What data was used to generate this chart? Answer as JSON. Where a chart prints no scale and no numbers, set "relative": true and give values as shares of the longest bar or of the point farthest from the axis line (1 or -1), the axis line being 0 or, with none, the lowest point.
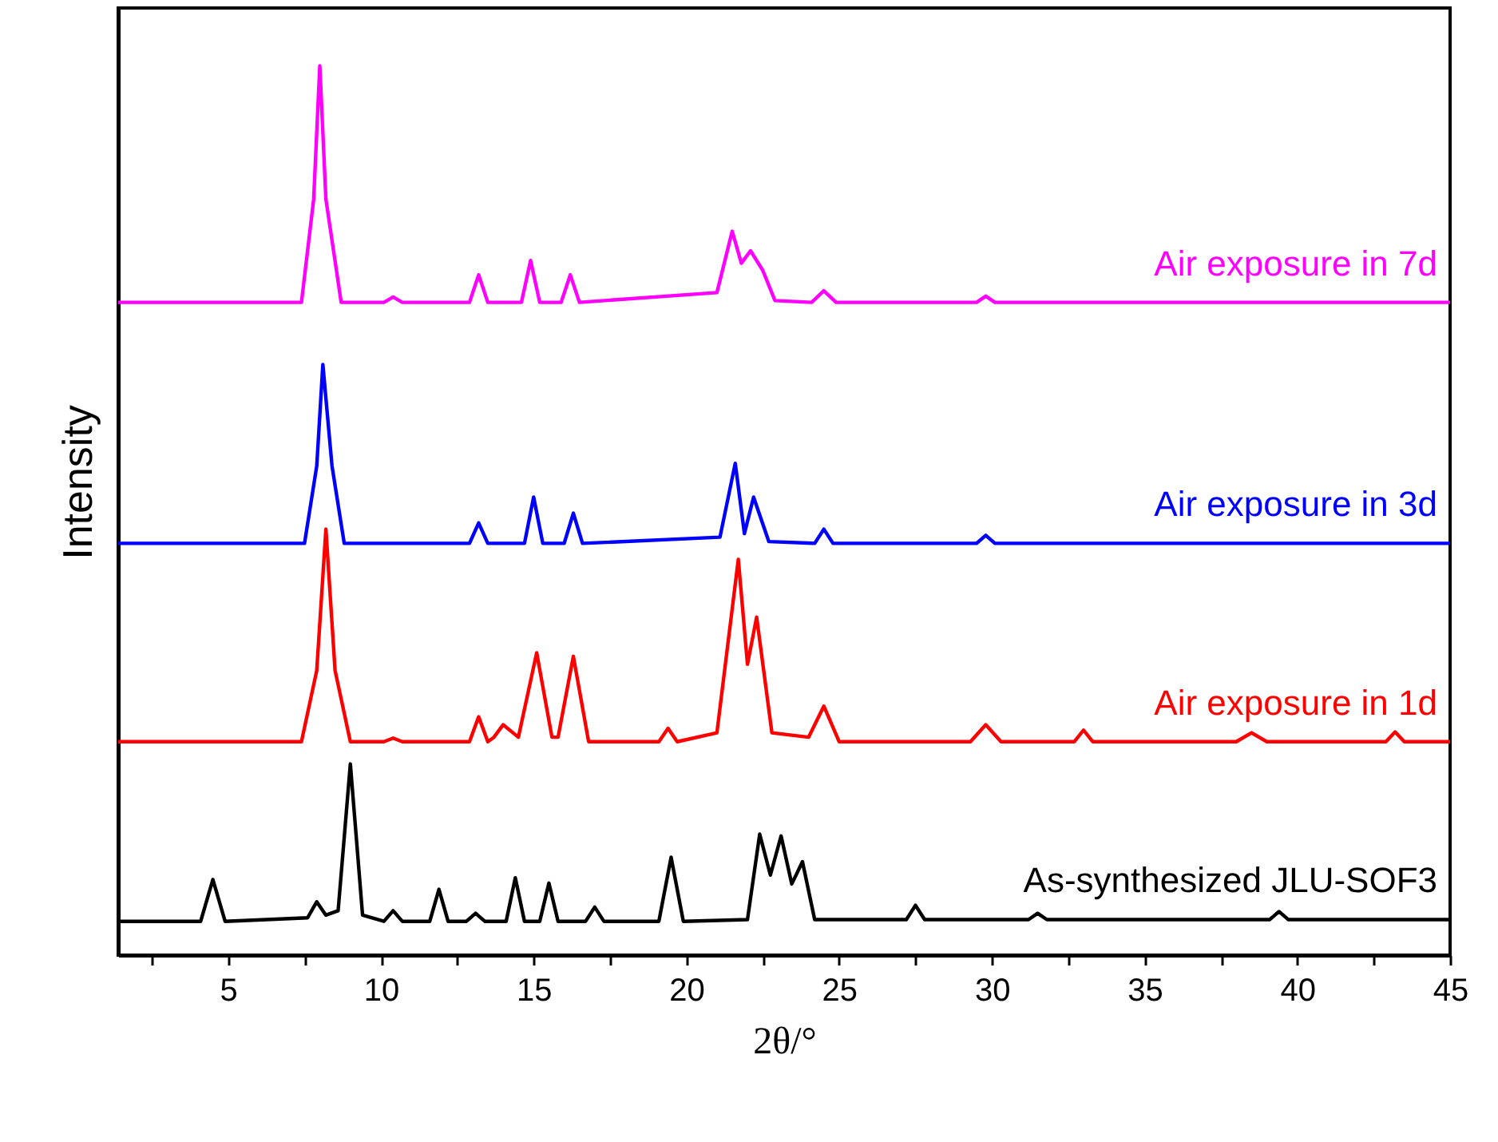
{
  "chart_data": {
    "type": "line",
    "xlabel": "2θ/°",
    "ylabel": "Intensity",
    "relative": true,
    "xlim": [
      1.4,
      45
    ],
    "xticks": [
      {
        "value": 2.5,
        "label": null
      },
      5,
      {
        "value": 7.5,
        "label": null
      },
      10,
      {
        "value": 12.5,
        "label": null
      },
      15,
      {
        "value": 17.5,
        "label": null
      },
      20,
      {
        "value": 22.5,
        "label": null
      },
      25,
      {
        "value": 27.5,
        "label": null
      },
      30,
      {
        "value": 32.5,
        "label": null
      },
      35,
      {
        "value": 37.5,
        "label": null
      },
      40,
      {
        "value": 42.5,
        "label": null
      },
      45
    ],
    "series": [
      {
        "name": "As-synthesized JLU-SOF3",
        "color": "#000000",
        "x": [
          1.4,
          4.1,
          4.5,
          4.9,
          7.6,
          7.9,
          8.2,
          8.6,
          9.0,
          9.4,
          10.1,
          10.4,
          10.7,
          11.6,
          11.9,
          12.2,
          12.8,
          13.1,
          13.4,
          14.1,
          14.4,
          14.7,
          15.2,
          15.5,
          15.8,
          16.7,
          17.0,
          17.3,
          19.1,
          19.5,
          19.9,
          22.0,
          22.4,
          22.75,
          23.1,
          23.45,
          23.8,
          24.2,
          27.2,
          27.5,
          27.8,
          31.2,
          31.5,
          31.8,
          39.1,
          39.4,
          39.7,
          45
        ],
        "values": [
          0.038,
          0.038,
          0.085,
          0.038,
          0.042,
          0.06,
          0.045,
          0.05,
          0.215,
          0.045,
          0.038,
          0.05,
          0.038,
          0.038,
          0.074,
          0.038,
          0.038,
          0.047,
          0.038,
          0.038,
          0.087,
          0.038,
          0.038,
          0.081,
          0.038,
          0.038,
          0.054,
          0.038,
          0.038,
          0.11,
          0.038,
          0.04,
          0.136,
          0.09,
          0.134,
          0.08,
          0.105,
          0.04,
          0.04,
          0.056,
          0.04,
          0.04,
          0.047,
          0.04,
          0.04,
          0.049,
          0.04,
          0.04
        ]
      },
      {
        "name": "Air exposure in 1d",
        "color": "#ff0000",
        "x": [
          1.4,
          7.4,
          7.9,
          8.2,
          8.5,
          9.0,
          10.1,
          10.4,
          10.7,
          12.9,
          13.2,
          13.5,
          13.7,
          14.0,
          14.5,
          15.1,
          15.6,
          15.8,
          16.3,
          16.8,
          19.1,
          19.4,
          19.7,
          21.0,
          21.7,
          22.0,
          22.3,
          22.8,
          24.0,
          24.5,
          25.0,
          29.3,
          29.8,
          30.3,
          32.7,
          33.0,
          33.3,
          38.0,
          38.5,
          39.0,
          42.9,
          43.2,
          43.5,
          45
        ],
        "values": [
          0.24,
          0.24,
          0.32,
          0.479,
          0.32,
          0.24,
          0.24,
          0.244,
          0.24,
          0.24,
          0.268,
          0.24,
          0.245,
          0.259,
          0.245,
          0.34,
          0.245,
          0.245,
          0.336,
          0.24,
          0.24,
          0.255,
          0.24,
          0.25,
          0.445,
          0.327,
          0.38,
          0.25,
          0.245,
          0.28,
          0.24,
          0.24,
          0.259,
          0.24,
          0.24,
          0.253,
          0.24,
          0.24,
          0.25,
          0.24,
          0.24,
          0.251,
          0.24,
          0.24
        ]
      },
      {
        "name": "Air exposure in 3d",
        "color": "#0000ff",
        "x": [
          1.4,
          7.5,
          7.9,
          8.1,
          8.4,
          8.8,
          12.9,
          13.2,
          13.5,
          14.7,
          15.0,
          15.3,
          16.0,
          16.3,
          16.6,
          21.1,
          21.6,
          21.9,
          22.2,
          22.7,
          24.2,
          24.5,
          24.8,
          29.5,
          29.8,
          30.1,
          45
        ],
        "values": [
          0.463,
          0.463,
          0.55,
          0.664,
          0.55,
          0.463,
          0.463,
          0.486,
          0.463,
          0.463,
          0.515,
          0.463,
          0.463,
          0.497,
          0.463,
          0.47,
          0.553,
          0.474,
          0.515,
          0.465,
          0.463,
          0.479,
          0.463,
          0.463,
          0.472,
          0.463,
          0.463
        ]
      },
      {
        "name": "Air exposure in 7d",
        "color": "#ff00ff",
        "x": [
          1.4,
          7.4,
          7.8,
          8.0,
          8.2,
          8.7,
          10.1,
          10.4,
          10.7,
          12.9,
          13.2,
          13.5,
          14.6,
          14.9,
          15.2,
          15.9,
          16.2,
          16.5,
          21.0,
          21.5,
          21.8,
          22.1,
          22.5,
          22.9,
          24.1,
          24.5,
          24.9,
          29.5,
          29.8,
          30.1,
          45
        ],
        "values": [
          0.734,
          0.734,
          0.85,
          1,
          0.85,
          0.734,
          0.734,
          0.74,
          0.734,
          0.734,
          0.765,
          0.734,
          0.734,
          0.781,
          0.734,
          0.734,
          0.765,
          0.734,
          0.745,
          0.814,
          0.778,
          0.792,
          0.77,
          0.736,
          0.734,
          0.747,
          0.734,
          0.734,
          0.741,
          0.734,
          0.734
        ]
      }
    ]
  }
}
